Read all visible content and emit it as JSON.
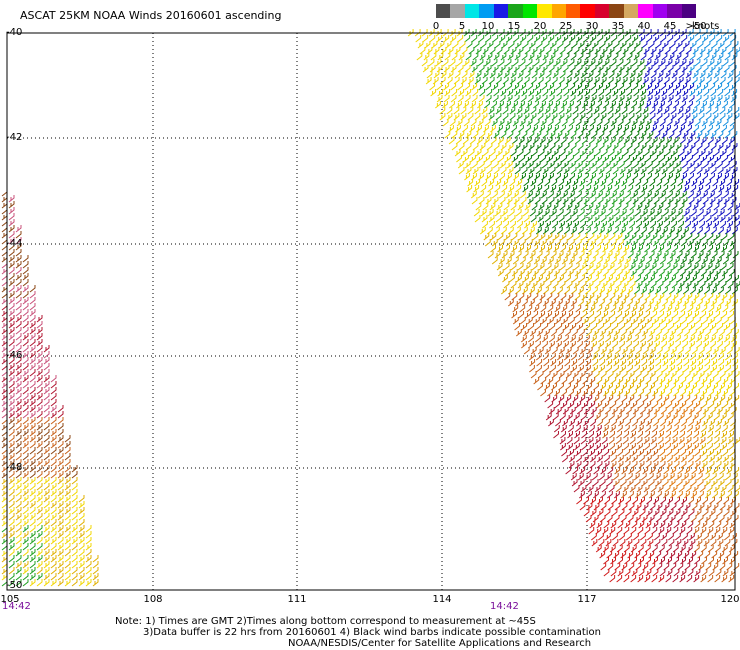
{
  "title": "ASCAT 25KM NOAA Winds 20160601 ascending",
  "legend": {
    "labels": [
      "0",
      "5",
      "10",
      "15",
      "20",
      "25",
      "30",
      "35",
      "40",
      "45",
      ">50"
    ],
    "unit": "knots",
    "colors": [
      "#4d4d4d",
      "#a6a6a6",
      "#00e6e6",
      "#009cf2",
      "#1a1ae6",
      "#1aa51a",
      "#00e600",
      "#ffe800",
      "#ffa500",
      "#ff5a00",
      "#ff0000",
      "#d7002d",
      "#8b4513",
      "#d5a860",
      "#ff00ff",
      "#a000f0",
      "#7a00a8",
      "#4b0082"
    ]
  },
  "map": {
    "lat_labels": [
      "-40",
      "-42",
      "-44",
      "-46",
      "-48",
      "-50"
    ],
    "lon_labels": [
      "105",
      "108",
      "111",
      "114",
      "117",
      "120"
    ],
    "time_labels": [
      "14:42",
      "14:42"
    ]
  },
  "notes": {
    "line1": "Note: 1) Times are GMT 2)Times along bottom correspond to measurement at ~45S",
    "line2": "3)Data buffer is 22 hrs from 20160601 4) Black wind barbs indicate possible contamination",
    "line3": "NOAA/NESDIS/Center for Satellite Applications and Research"
  }
}
